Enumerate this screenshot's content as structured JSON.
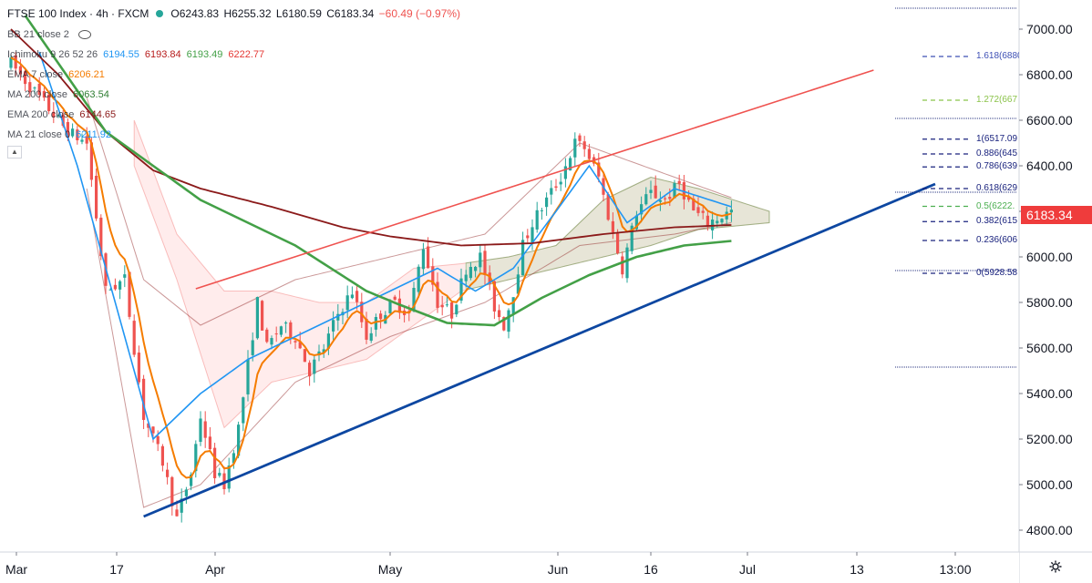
{
  "header": {
    "symbol": "FTSE 100 Index · 4h · FXCM",
    "open": "O6243.83",
    "high": "H6255.32",
    "low": "L6180.59",
    "close": "C6183.34",
    "change": "−60.49 (−0.97%)"
  },
  "indicators": [
    {
      "name": "BB 21 close 2",
      "values": [],
      "colors": [],
      "has_eye": true
    },
    {
      "name": "Ichimoku 9 26 52 26",
      "values": [
        "6194.55",
        "6193.84",
        "6193.49",
        "6222.77"
      ],
      "colors": [
        "#2196f3",
        "#b71c1c",
        "#43a047",
        "#e53935"
      ],
      "has_eye": false
    },
    {
      "name": "EMA 7 close",
      "values": [
        "6206.21"
      ],
      "colors": [
        "#f57c00"
      ],
      "has_eye": false
    },
    {
      "name": "MA 200 close",
      "values": [
        "6063.54"
      ],
      "colors": [
        "#2e7d32"
      ],
      "has_eye": false
    },
    {
      "name": "EMA 200 close",
      "values": [
        "6144.65"
      ],
      "colors": [
        "#8b1a1a"
      ],
      "has_eye": false
    },
    {
      "name": "MA 21 close 0",
      "values": [
        "6211.92"
      ],
      "colors": [
        "#2196f3"
      ],
      "has_eye": false
    }
  ],
  "colors": {
    "up": "#26a69a",
    "down": "#ef5350",
    "ema7": "#f57c00",
    "ma21": "#2196f3",
    "ma200": "#43a047",
    "ema200": "#8b1a1a",
    "upper_channel": "#ef5350",
    "lower_trend": "#0d47a1",
    "last_price_tag": "#ef3c3c"
  },
  "chart_data": {
    "type": "candlestick",
    "y_axis": {
      "ticks": [
        "7000.00",
        "6800.00",
        "6600.00",
        "6400.00",
        "6200.00",
        "6000.00",
        "5800.00",
        "5600.00",
        "5400.00",
        "5200.00",
        "5000.00",
        "4800.00"
      ],
      "range": [
        4740,
        7110
      ]
    },
    "x_axis": {
      "labels": [
        "Mar",
        "17",
        "Apr",
        "May",
        "Jun",
        "16",
        "Jul",
        "13",
        "13:00"
      ]
    },
    "last_price": "6183.34",
    "fibonacci": [
      {
        "label": "1.618(6880",
        "price": 6880
      },
      {
        "label": "1.272(667",
        "price": 6688
      },
      {
        "label": "1(6517.09",
        "price": 6517
      },
      {
        "label": "0.886(645",
        "price": 6452
      },
      {
        "label": "0.786(639",
        "price": 6395
      },
      {
        "label": "0.618(629",
        "price": 6300
      },
      {
        "label": "0.5(6222.",
        "price": 6222
      },
      {
        "label": "0.382(615",
        "price": 6155
      },
      {
        "label": "0.236(606",
        "price": 6072
      },
      {
        "label": "0(5928.58",
        "price": 5928
      }
    ],
    "ohlc_path": [
      [
        0,
        6850
      ],
      [
        6,
        6700
      ],
      [
        12,
        6550
      ],
      [
        16,
        6500
      ],
      [
        20,
        5850
      ],
      [
        24,
        5900
      ],
      [
        28,
        5300
      ],
      [
        32,
        5100
      ],
      [
        35,
        4850
      ],
      [
        38,
        5050
      ],
      [
        40,
        5300
      ],
      [
        43,
        5050
      ],
      [
        45,
        5000
      ],
      [
        48,
        5250
      ],
      [
        52,
        5800
      ],
      [
        54,
        5600
      ],
      [
        57,
        5700
      ],
      [
        60,
        5650
      ],
      [
        63,
        5500
      ],
      [
        66,
        5600
      ],
      [
        69,
        5750
      ],
      [
        72,
        5850
      ],
      [
        75,
        5650
      ],
      [
        78,
        5750
      ],
      [
        81,
        5800
      ],
      [
        84,
        5750
      ],
      [
        87,
        6050
      ],
      [
        90,
        5800
      ],
      [
        93,
        5750
      ],
      [
        96,
        5950
      ],
      [
        99,
        6000
      ],
      [
        102,
        5780
      ],
      [
        104,
        5700
      ],
      [
        106,
        5850
      ],
      [
        108,
        6050
      ],
      [
        110,
        6150
      ],
      [
        113,
        6250
      ],
      [
        116,
        6350
      ],
      [
        119,
        6500
      ],
      [
        121,
        6480
      ],
      [
        124,
        6350
      ],
      [
        127,
        6100
      ],
      [
        129,
        5950
      ],
      [
        132,
        6200
      ],
      [
        135,
        6280
      ],
      [
        138,
        6250
      ],
      [
        141,
        6320
      ],
      [
        144,
        6200
      ],
      [
        147,
        6150
      ],
      [
        150,
        6180
      ],
      [
        152,
        6200
      ]
    ],
    "ema7_label": "EMA 7",
    "ma200_curve": [
      [
        3,
        7060
      ],
      [
        20,
        6550
      ],
      [
        40,
        6250
      ],
      [
        60,
        6050
      ],
      [
        75,
        5850
      ],
      [
        82,
        5790
      ],
      [
        92,
        5710
      ],
      [
        102,
        5700
      ],
      [
        112,
        5820
      ],
      [
        122,
        5920
      ],
      [
        132,
        6000
      ],
      [
        142,
        6050
      ],
      [
        152,
        6070
      ]
    ],
    "ema200_curve": [
      [
        0,
        7000
      ],
      [
        10,
        6800
      ],
      [
        20,
        6550
      ],
      [
        30,
        6380
      ],
      [
        40,
        6300
      ],
      [
        55,
        6220
      ],
      [
        70,
        6130
      ],
      [
        80,
        6090
      ],
      [
        95,
        6050
      ],
      [
        110,
        6060
      ],
      [
        125,
        6100
      ],
      [
        140,
        6130
      ],
      [
        152,
        6140
      ]
    ],
    "ma21_curve": [
      [
        6,
        6900
      ],
      [
        14,
        6400
      ],
      [
        22,
        5800
      ],
      [
        30,
        5200
      ],
      [
        40,
        5400
      ],
      [
        50,
        5550
      ],
      [
        60,
        5650
      ],
      [
        70,
        5750
      ],
      [
        80,
        5850
      ],
      [
        90,
        5950
      ],
      [
        98,
        5850
      ],
      [
        106,
        5950
      ],
      [
        115,
        6200
      ],
      [
        122,
        6400
      ],
      [
        130,
        6150
      ],
      [
        140,
        6300
      ],
      [
        152,
        6220
      ]
    ],
    "ichimoku_cloud_top": [
      [
        26,
        6600
      ],
      [
        35,
        6100
      ],
      [
        45,
        5850
      ],
      [
        55,
        5850
      ],
      [
        65,
        5800
      ],
      [
        75,
        5800
      ],
      [
        85,
        5950
      ],
      [
        95,
        5970
      ],
      [
        105,
        6000
      ],
      [
        115,
        6050
      ],
      [
        125,
        6250
      ],
      [
        135,
        6350
      ],
      [
        145,
        6300
      ],
      [
        160,
        6200
      ]
    ],
    "ichimoku_cloud_bot": [
      [
        26,
        6400
      ],
      [
        35,
        5900
      ],
      [
        45,
        5250
      ],
      [
        55,
        5450
      ],
      [
        65,
        5500
      ],
      [
        75,
        5550
      ],
      [
        85,
        5700
      ],
      [
        95,
        5850
      ],
      [
        105,
        5900
      ],
      [
        115,
        5950
      ],
      [
        125,
        6000
      ],
      [
        135,
        6050
      ],
      [
        145,
        6120
      ],
      [
        160,
        6150
      ]
    ],
    "bollinger_upper": [
      [
        16,
        6700
      ],
      [
        28,
        5900
      ],
      [
        40,
        5700
      ],
      [
        60,
        5900
      ],
      [
        80,
        6000
      ],
      [
        100,
        6100
      ],
      [
        120,
        6500
      ],
      [
        140,
        6350
      ],
      [
        152,
        6260
      ]
    ],
    "bollinger_lower": [
      [
        16,
        6300
      ],
      [
        28,
        4900
      ],
      [
        40,
        5000
      ],
      [
        60,
        5450
      ],
      [
        80,
        5650
      ],
      [
        100,
        5800
      ],
      [
        120,
        6050
      ],
      [
        140,
        6100
      ],
      [
        152,
        6150
      ]
    ],
    "trend_upper": [
      [
        39,
        5860
      ],
      [
        182,
        6820
      ]
    ],
    "trend_lower": [
      [
        28,
        4860
      ],
      [
        195,
        6320
      ]
    ]
  }
}
